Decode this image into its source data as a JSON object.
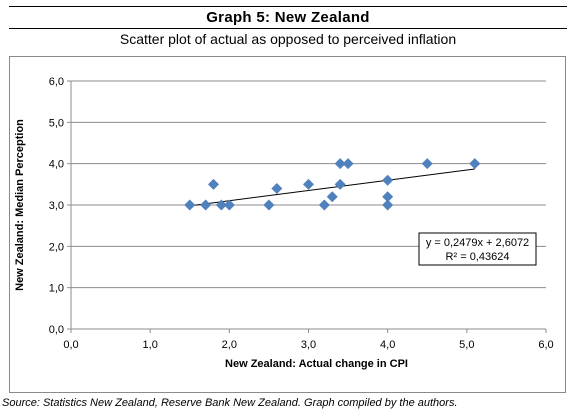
{
  "header": {
    "title": "Graph 5: New Zealand",
    "subtitle": "Scatter plot of actual as opposed to perceived inflation"
  },
  "footer": {
    "source": "Source: Statistics New Zealand, Reserve Bank New Zealand. Graph compiled by the authors."
  },
  "chart_data": {
    "type": "scatter",
    "xlabel": "New Zealand: Actual change in CPI",
    "ylabel": "New Zealand: Median Perception",
    "xlim": [
      0,
      6
    ],
    "ylim": [
      0,
      6
    ],
    "xticks": [
      "0,0",
      "1,0",
      "2,0",
      "3,0",
      "4,0",
      "5,0",
      "6,0"
    ],
    "yticks": [
      "0,0",
      "1,0",
      "2,0",
      "3,0",
      "4,0",
      "5,0",
      "6,0"
    ],
    "grid": "horizontal",
    "marker_color": "#4f81bd",
    "trendline": {
      "slope": 0.2479,
      "intercept": 2.6072,
      "x_range": [
        1.5,
        5.1
      ],
      "equation": "y = 0,2479x + 2,6072",
      "r_squared": "R² = 0,43624"
    },
    "points": [
      {
        "x": 1.5,
        "y": 3.0
      },
      {
        "x": 1.7,
        "y": 3.0
      },
      {
        "x": 1.8,
        "y": 3.5
      },
      {
        "x": 1.9,
        "y": 3.0
      },
      {
        "x": 2.0,
        "y": 3.0
      },
      {
        "x": 2.5,
        "y": 3.0
      },
      {
        "x": 2.6,
        "y": 3.4
      },
      {
        "x": 3.0,
        "y": 3.5
      },
      {
        "x": 3.2,
        "y": 3.0
      },
      {
        "x": 3.3,
        "y": 3.2
      },
      {
        "x": 3.4,
        "y": 3.5
      },
      {
        "x": 3.4,
        "y": 4.0
      },
      {
        "x": 3.5,
        "y": 4.0
      },
      {
        "x": 4.0,
        "y": 3.6
      },
      {
        "x": 4.0,
        "y": 3.2
      },
      {
        "x": 4.0,
        "y": 3.0
      },
      {
        "x": 4.5,
        "y": 4.0
      },
      {
        "x": 5.1,
        "y": 4.0
      }
    ]
  }
}
